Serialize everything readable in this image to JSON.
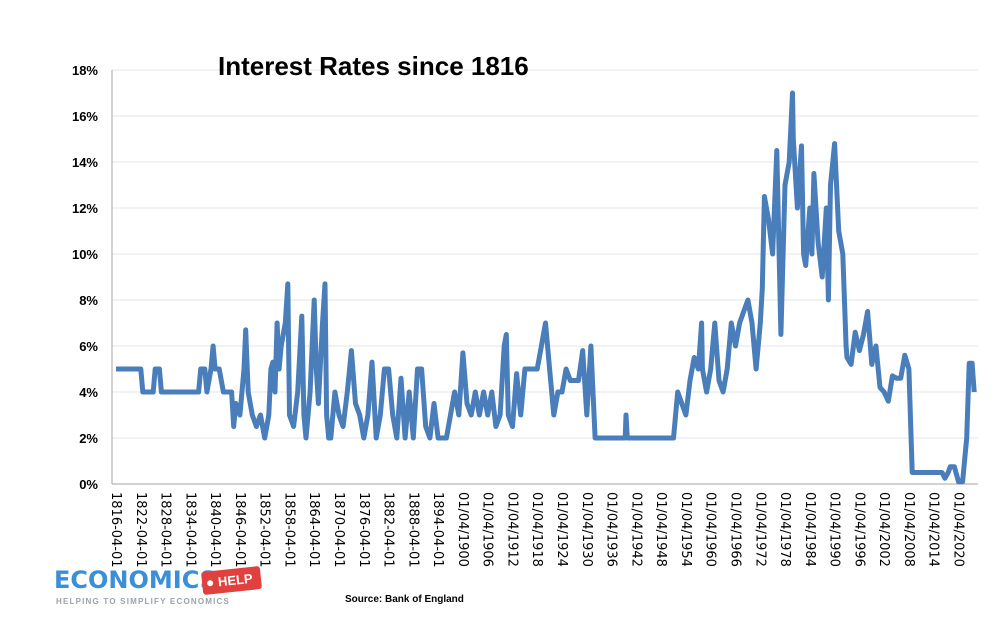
{
  "chart_data": {
    "type": "line",
    "title": "Interest Rates since 1816",
    "xlabel": "",
    "ylabel": "",
    "source": "Source: Bank of England",
    "ylim": [
      0,
      18
    ],
    "xlim": [
      1816,
      2024
    ],
    "grid": true,
    "legend": "none",
    "line_color": "#4a7ebb",
    "y_ticks": [
      "0%",
      "2%",
      "4%",
      "6%",
      "8%",
      "10%",
      "12%",
      "14%",
      "16%",
      "18%"
    ],
    "x_ticks": [
      {
        "year": 1816,
        "label": "1816-04-01"
      },
      {
        "year": 1822,
        "label": "1822-04-01"
      },
      {
        "year": 1828,
        "label": "1828-04-01"
      },
      {
        "year": 1834,
        "label": "1834-04-01"
      },
      {
        "year": 1840,
        "label": "1840-04-01"
      },
      {
        "year": 1846,
        "label": "1846-04-01"
      },
      {
        "year": 1852,
        "label": "1852-04-01"
      },
      {
        "year": 1858,
        "label": "1858-04-01"
      },
      {
        "year": 1864,
        "label": "1864-04-01"
      },
      {
        "year": 1870,
        "label": "1870-04-01"
      },
      {
        "year": 1876,
        "label": "1876-04-01"
      },
      {
        "year": 1882,
        "label": "1882-04-01"
      },
      {
        "year": 1888,
        "label": "1888-04-01"
      },
      {
        "year": 1894,
        "label": "1894-04-01"
      },
      {
        "year": 1900,
        "label": "01/04/1900"
      },
      {
        "year": 1906,
        "label": "01/04/1906"
      },
      {
        "year": 1912,
        "label": "01/04/1912"
      },
      {
        "year": 1918,
        "label": "01/04/1918"
      },
      {
        "year": 1924,
        "label": "01/04/1924"
      },
      {
        "year": 1930,
        "label": "01/04/1930"
      },
      {
        "year": 1936,
        "label": "01/04/1936"
      },
      {
        "year": 1942,
        "label": "01/04/1942"
      },
      {
        "year": 1948,
        "label": "01/04/1948"
      },
      {
        "year": 1954,
        "label": "01/04/1954"
      },
      {
        "year": 1960,
        "label": "01/04/1960"
      },
      {
        "year": 1966,
        "label": "01/04/1966"
      },
      {
        "year": 1972,
        "label": "01/04/1972"
      },
      {
        "year": 1978,
        "label": "01/04/1978"
      },
      {
        "year": 1984,
        "label": "01/04/1984"
      },
      {
        "year": 1990,
        "label": "01/04/1990"
      },
      {
        "year": 1996,
        "label": "01/04/1996"
      },
      {
        "year": 2002,
        "label": "01/04/2002"
      },
      {
        "year": 2008,
        "label": "01/04/2008"
      },
      {
        "year": 2014,
        "label": "01/04/2014"
      },
      {
        "year": 2020,
        "label": "01/04/2020"
      }
    ],
    "series": [
      {
        "points": [
          [
            1816,
            5
          ],
          [
            1822,
            5
          ],
          [
            1822.5,
            4
          ],
          [
            1825,
            4
          ],
          [
            1825.5,
            5
          ],
          [
            1826.5,
            5
          ],
          [
            1827,
            4
          ],
          [
            1836,
            4
          ],
          [
            1836.5,
            5
          ],
          [
            1837.5,
            5
          ],
          [
            1838,
            4
          ],
          [
            1839,
            5
          ],
          [
            1839.5,
            6
          ],
          [
            1840,
            5
          ],
          [
            1841,
            5
          ],
          [
            1842,
            4
          ],
          [
            1844,
            4
          ],
          [
            1844.5,
            2.5
          ],
          [
            1845,
            3.5
          ],
          [
            1846,
            3
          ],
          [
            1847,
            5
          ],
          [
            1847.4,
            6.7
          ],
          [
            1848,
            4
          ],
          [
            1849,
            3
          ],
          [
            1850,
            2.5
          ],
          [
            1851,
            3
          ],
          [
            1852,
            2
          ],
          [
            1853,
            3
          ],
          [
            1853.5,
            5
          ],
          [
            1854,
            5.3
          ],
          [
            1854.5,
            4
          ],
          [
            1855,
            7
          ],
          [
            1855.5,
            5
          ],
          [
            1856,
            6
          ],
          [
            1857,
            7
          ],
          [
            1857.6,
            8.7
          ],
          [
            1858,
            3
          ],
          [
            1859,
            2.5
          ],
          [
            1860,
            4
          ],
          [
            1861,
            7.3
          ],
          [
            1861.5,
            3
          ],
          [
            1862,
            2
          ],
          [
            1863,
            4
          ],
          [
            1864,
            8
          ],
          [
            1864.5,
            5
          ],
          [
            1865,
            3.5
          ],
          [
            1866,
            7
          ],
          [
            1866.6,
            8.7
          ],
          [
            1867,
            3
          ],
          [
            1867.5,
            2
          ],
          [
            1868,
            2
          ],
          [
            1869,
            4
          ],
          [
            1870,
            3
          ],
          [
            1871,
            2.5
          ],
          [
            1872,
            4
          ],
          [
            1873,
            5.8
          ],
          [
            1874,
            3.5
          ],
          [
            1875,
            3
          ],
          [
            1876,
            2
          ],
          [
            1877,
            3
          ],
          [
            1878,
            5.3
          ],
          [
            1879,
            2
          ],
          [
            1880,
            3
          ],
          [
            1881,
            5
          ],
          [
            1882,
            5
          ],
          [
            1883,
            3
          ],
          [
            1884,
            2
          ],
          [
            1885,
            4.6
          ],
          [
            1886,
            2
          ],
          [
            1887,
            4
          ],
          [
            1888,
            2
          ],
          [
            1889,
            5
          ],
          [
            1890,
            5
          ],
          [
            1891,
            2.5
          ],
          [
            1892,
            2
          ],
          [
            1893,
            3.5
          ],
          [
            1894,
            2
          ],
          [
            1896,
            2
          ],
          [
            1897,
            3
          ],
          [
            1898,
            4
          ],
          [
            1899,
            3
          ],
          [
            1900,
            5.7
          ],
          [
            1901,
            3.5
          ],
          [
            1902,
            3
          ],
          [
            1903,
            4
          ],
          [
            1904,
            3
          ],
          [
            1905,
            4
          ],
          [
            1906,
            3
          ],
          [
            1907,
            4
          ],
          [
            1908,
            2.5
          ],
          [
            1909,
            3
          ],
          [
            1910,
            6
          ],
          [
            1910.5,
            6.5
          ],
          [
            1911,
            3
          ],
          [
            1912,
            2.5
          ],
          [
            1913,
            4.8
          ],
          [
            1914,
            3
          ],
          [
            1915,
            5
          ],
          [
            1916,
            5
          ],
          [
            1917,
            5
          ],
          [
            1918,
            5
          ],
          [
            1919,
            6
          ],
          [
            1920,
            7
          ],
          [
            1921,
            5
          ],
          [
            1922,
            3
          ],
          [
            1923,
            4
          ],
          [
            1924,
            4
          ],
          [
            1925,
            5
          ],
          [
            1926,
            4.5
          ],
          [
            1927,
            4.5
          ],
          [
            1928,
            4.5
          ],
          [
            1929,
            5.8
          ],
          [
            1930,
            3
          ],
          [
            1931,
            6
          ],
          [
            1932,
            2
          ],
          [
            1939.3,
            2
          ],
          [
            1939.5,
            3
          ],
          [
            1939.8,
            2
          ],
          [
            1951,
            2
          ],
          [
            1952,
            4
          ],
          [
            1953,
            3.5
          ],
          [
            1954,
            3
          ],
          [
            1955,
            4.5
          ],
          [
            1956,
            5.5
          ],
          [
            1957,
            5
          ],
          [
            1957.8,
            7
          ],
          [
            1958,
            5
          ],
          [
            1959,
            4
          ],
          [
            1960,
            5
          ],
          [
            1961,
            7
          ],
          [
            1962,
            4.5
          ],
          [
            1963,
            4
          ],
          [
            1964,
            5
          ],
          [
            1965,
            7
          ],
          [
            1966,
            6
          ],
          [
            1967,
            7
          ],
          [
            1968,
            7.5
          ],
          [
            1969,
            8
          ],
          [
            1970,
            7
          ],
          [
            1971,
            5
          ],
          [
            1972,
            7
          ],
          [
            1972.5,
            8.5
          ],
          [
            1973,
            12.5
          ],
          [
            1974,
            11.5
          ],
          [
            1975,
            10
          ],
          [
            1976,
            14.5
          ],
          [
            1977,
            6.5
          ],
          [
            1978,
            13
          ],
          [
            1979,
            14
          ],
          [
            1979.8,
            17
          ],
          [
            1980,
            15
          ],
          [
            1981,
            12
          ],
          [
            1982,
            14.7
          ],
          [
            1982.5,
            10
          ],
          [
            1983,
            9.5
          ],
          [
            1984,
            12
          ],
          [
            1984.5,
            10
          ],
          [
            1985,
            13.5
          ],
          [
            1986,
            10.5
          ],
          [
            1987,
            9
          ],
          [
            1988,
            12
          ],
          [
            1988.5,
            8
          ],
          [
            1989,
            13
          ],
          [
            1990,
            14.8
          ],
          [
            1991,
            11
          ],
          [
            1992,
            10
          ],
          [
            1992.8,
            6
          ],
          [
            1993,
            5.5
          ],
          [
            1994,
            5.2
          ],
          [
            1995,
            6.6
          ],
          [
            1996,
            5.8
          ],
          [
            1997,
            6.5
          ],
          [
            1998,
            7.5
          ],
          [
            1999,
            5.2
          ],
          [
            2000,
            6
          ],
          [
            2001,
            4.2
          ],
          [
            2002,
            4
          ],
          [
            2003,
            3.6
          ],
          [
            2004,
            4.7
          ],
          [
            2005,
            4.6
          ],
          [
            2006,
            4.6
          ],
          [
            2007,
            5.6
          ],
          [
            2008,
            5
          ],
          [
            2008.8,
            0.5
          ],
          [
            2016,
            0.5
          ],
          [
            2016.7,
            0.25
          ],
          [
            2017.5,
            0.5
          ],
          [
            2018,
            0.75
          ],
          [
            2019,
            0.75
          ],
          [
            2020,
            0.1
          ],
          [
            2021,
            0.1
          ],
          [
            2022,
            2
          ],
          [
            2022.6,
            5.25
          ],
          [
            2023.3,
            5.25
          ],
          [
            2023.8,
            4
          ]
        ]
      }
    ]
  },
  "logo": {
    "word": "ECONOMICS",
    "tag": "HELP",
    "tagline": "HELPING TO SIMPLIFY ECONOMICS"
  }
}
